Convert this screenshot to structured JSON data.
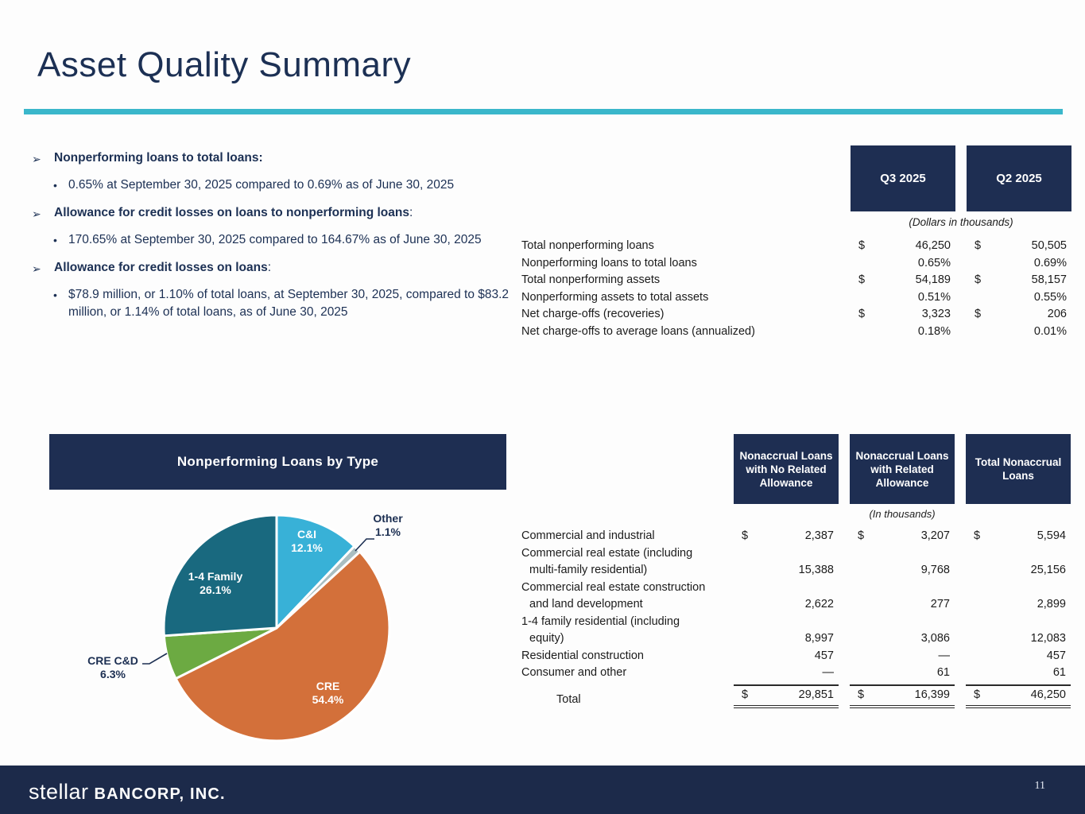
{
  "slide": {
    "title": "Asset Quality Summary",
    "page_number": "11"
  },
  "icons": {
    "arrow_bullet": "➢",
    "dot_bullet": "•"
  },
  "colors": {
    "navy_box": "#1e2e52",
    "teal_rule": "#3ab7cb",
    "footer_navy": "#1c2a4a",
    "text_navy": "#1c3054"
  },
  "bullets": [
    {
      "heading": "Nonperforming loans to total loans:",
      "suffix": "",
      "detail": "0.65% at September 30, 2025 compared to 0.69% as of June 30, 2025"
    },
    {
      "heading": "Allowance for credit losses on loans to nonperforming loans",
      "suffix": ":",
      "detail": "170.65% at September 30, 2025 compared to 164.67% as of June 30, 2025"
    },
    {
      "heading": "Allowance for credit losses on loans",
      "suffix": ":",
      "detail": "$78.9 million, or 1.10% of total loans, at September 30, 2025, compared to $83.2 million, or 1.14% of total loans, as of June 30, 2025"
    }
  ],
  "quarterly_table": {
    "col_headers": [
      "Q3 2025",
      "Q2 2025"
    ],
    "units_note": "(Dollars in thousands)",
    "rows": [
      {
        "label": "Total nonperforming loans",
        "dollar": true,
        "values": [
          "46,250",
          "50,505"
        ]
      },
      {
        "label": "Nonperforming loans to total loans",
        "dollar": false,
        "values": [
          "0.65%",
          "0.69%"
        ]
      },
      {
        "label": "Total nonperforming assets",
        "dollar": true,
        "values": [
          "54,189",
          "58,157"
        ]
      },
      {
        "label": "Nonperforming assets to total assets",
        "dollar": false,
        "values": [
          "0.51%",
          "0.55%"
        ]
      },
      {
        "label": "Net charge-offs (recoveries)",
        "dollar": true,
        "values": [
          "3,323",
          "206"
        ]
      },
      {
        "label": "Net charge-offs to average loans (annualized)",
        "dollar": false,
        "values": [
          "0.18%",
          "0.01%"
        ]
      }
    ]
  },
  "chart_data": {
    "type": "pie",
    "title": "Nonperforming Loans by Type",
    "start_angle_deg": -90,
    "direction": "clockwise",
    "legend_position": "labels-on-slices",
    "slices": [
      {
        "label": "C&I",
        "value": 12.1,
        "pct": "12.1%",
        "color": "#38b1d7"
      },
      {
        "label": "Other",
        "value": 1.1,
        "pct": "1.1%",
        "color": "#a9bec1"
      },
      {
        "label": "CRE",
        "value": 54.4,
        "pct": "54.4%",
        "color": "#d3703a"
      },
      {
        "label": "CRE C&D",
        "value": 6.3,
        "pct": "6.3%",
        "color": "#6caa42"
      },
      {
        "label": "1-4 Family",
        "value": 26.1,
        "pct": "26.1%",
        "color": "#19697f"
      }
    ]
  },
  "nonaccrual_table": {
    "col_headers": [
      "Nonaccrual Loans with No Related Allowance",
      "Nonaccrual Loans with Related Allowance",
      "Total Nonaccrual Loans"
    ],
    "units_note": "(In thousands)",
    "rows": [
      {
        "label_lines": [
          "Commercial and industrial"
        ],
        "dollar": true,
        "values": [
          "2,387",
          "3,207",
          "5,594"
        ]
      },
      {
        "label_lines": [
          "Commercial real estate (including",
          "multi-family residential)"
        ],
        "dollar": false,
        "values": [
          "15,388",
          "9,768",
          "25,156"
        ]
      },
      {
        "label_lines": [
          "Commercial real estate construction",
          "and land development"
        ],
        "dollar": false,
        "values": [
          "2,622",
          "277",
          "2,899"
        ]
      },
      {
        "label_lines": [
          "1-4 family residential (including",
          "equity)"
        ],
        "dollar": false,
        "values": [
          "8,997",
          "3,086",
          "12,083"
        ]
      },
      {
        "label_lines": [
          "Residential construction"
        ],
        "dollar": false,
        "values": [
          "457",
          "—",
          "457"
        ]
      },
      {
        "label_lines": [
          "Consumer and other"
        ],
        "dollar": false,
        "values": [
          "—",
          "61",
          "61"
        ]
      }
    ],
    "total_row": {
      "label": "Total",
      "dollar": true,
      "values": [
        "29,851",
        "16,399",
        "46,250"
      ]
    }
  },
  "footer": {
    "logo_primary": "stellar",
    "logo_secondary": "BANCORP, INC."
  }
}
